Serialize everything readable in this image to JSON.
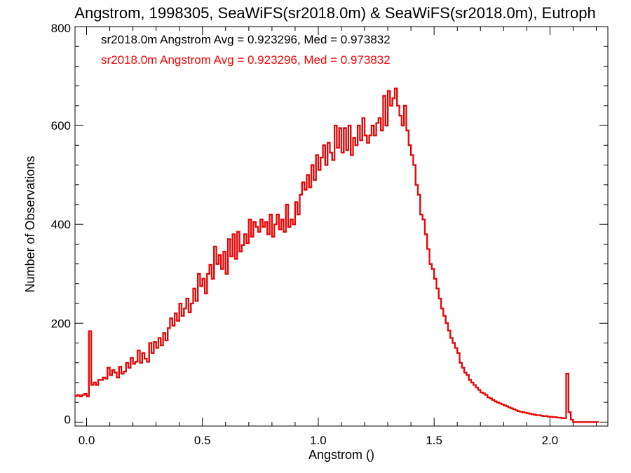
{
  "chart_data": {
    "type": "line",
    "title": "Angstrom, 1998305, SeaWiFS(sr2018.0m) & SeaWiFS(sr2018.0m), Eutroph",
    "xlabel": "Angstrom ()",
    "ylabel": "Number of Observations",
    "xlim": [
      -0.05,
      2.25
    ],
    "ylim": [
      -8,
      800
    ],
    "x_ticks": [
      0.0,
      0.5,
      1.0,
      1.5,
      2.0
    ],
    "x_tick_labels": [
      "0.0",
      "0.5",
      "1.0",
      "1.5",
      "2.0"
    ],
    "y_ticks": [
      0,
      200,
      400,
      600,
      800
    ],
    "y_tick_labels": [
      "0",
      "200",
      "400",
      "600",
      "800"
    ],
    "grid": false,
    "step_style": "histogram",
    "bin_width": 0.01,
    "series": [
      {
        "name": "sr2018.0m Angstrom",
        "color": "#000000",
        "x_start": -0.05,
        "x_end": 2.25,
        "values": [
          53,
          55,
          52,
          55,
          57,
          52,
          184,
          75,
          80,
          75,
          85,
          85,
          90,
          88,
          110,
          95,
          105,
          100,
          90,
          112,
          98,
          102,
          120,
          110,
          130,
          118,
          122,
          145,
          120,
          140,
          128,
          122,
          160,
          140,
          162,
          150,
          170,
          155,
          180,
          165,
          190,
          210,
          195,
          220,
          205,
          240,
          215,
          230,
          250,
          222,
          240,
          270,
          245,
          300,
          275,
          290,
          260,
          300,
          318,
          290,
          355,
          320,
          338,
          310,
          345,
          300,
          370,
          335,
          380,
          330,
          385,
          345,
          358,
          380,
          362,
          410,
          375,
          405,
          395,
          385,
          410,
          395,
          405,
          380,
          420,
          375,
          400,
          420,
          390,
          410,
          385,
          440,
          395,
          410,
          400,
          445,
          420,
          460,
          485,
          470,
          500,
          475,
          520,
          490,
          540,
          510,
          535,
          560,
          520,
          565,
          545,
          530,
          600,
          555,
          595,
          545,
          595,
          550,
          600,
          540,
          575,
          560,
          600,
          570,
          615,
          580,
          565,
          580,
          600,
          580,
          605,
          615,
          590,
          660,
          600,
          670,
          640,
          655,
          675,
          640,
          620,
          600,
          640,
          590,
          560,
          540,
          520,
          480,
          460,
          420,
          410,
          380,
          350,
          320,
          310,
          290,
          270,
          250,
          230,
          215,
          200,
          185,
          170,
          160,
          150,
          140,
          120,
          110,
          100,
          95,
          85,
          80,
          75,
          70,
          65,
          60,
          58,
          55,
          50,
          48,
          45,
          42,
          40,
          38,
          36,
          34,
          32,
          30,
          28,
          26,
          24,
          22,
          21,
          20,
          19,
          18,
          17,
          16,
          15,
          14,
          14,
          13,
          12,
          12,
          11,
          11,
          10,
          10,
          9,
          9,
          8,
          8,
          98,
          20,
          5,
          0,
          0,
          0,
          0,
          0,
          0,
          0,
          0,
          0,
          0,
          0
        ]
      },
      {
        "name": "sr2018.0m Angstrom",
        "color": "#ff0000",
        "x_start": -0.05,
        "x_end": 2.25,
        "values": [
          53,
          55,
          52,
          55,
          57,
          52,
          184,
          75,
          80,
          75,
          85,
          85,
          90,
          88,
          110,
          95,
          105,
          100,
          90,
          112,
          98,
          102,
          120,
          110,
          130,
          118,
          122,
          145,
          120,
          140,
          128,
          122,
          160,
          140,
          162,
          150,
          170,
          155,
          180,
          165,
          190,
          210,
          195,
          220,
          205,
          240,
          215,
          230,
          250,
          222,
          240,
          270,
          245,
          300,
          275,
          290,
          260,
          300,
          318,
          290,
          355,
          320,
          338,
          310,
          345,
          300,
          370,
          335,
          380,
          330,
          385,
          345,
          358,
          380,
          362,
          410,
          375,
          405,
          395,
          385,
          410,
          395,
          405,
          380,
          420,
          375,
          400,
          420,
          390,
          410,
          385,
          440,
          395,
          410,
          400,
          445,
          420,
          460,
          485,
          470,
          500,
          475,
          520,
          490,
          540,
          510,
          535,
          560,
          520,
          565,
          545,
          530,
          600,
          555,
          595,
          545,
          595,
          550,
          600,
          540,
          575,
          560,
          600,
          570,
          615,
          580,
          565,
          580,
          600,
          580,
          605,
          615,
          590,
          660,
          600,
          670,
          640,
          655,
          675,
          640,
          620,
          600,
          640,
          590,
          560,
          540,
          520,
          480,
          460,
          420,
          410,
          380,
          350,
          320,
          310,
          290,
          270,
          250,
          230,
          215,
          200,
          185,
          170,
          160,
          150,
          140,
          120,
          110,
          100,
          95,
          85,
          80,
          75,
          70,
          65,
          60,
          58,
          55,
          50,
          48,
          45,
          42,
          40,
          38,
          36,
          34,
          32,
          30,
          28,
          26,
          24,
          22,
          21,
          20,
          19,
          18,
          17,
          16,
          15,
          14,
          14,
          13,
          12,
          12,
          11,
          11,
          10,
          10,
          9,
          9,
          8,
          8,
          98,
          20,
          5,
          0,
          0,
          0,
          0,
          0,
          0,
          0,
          0,
          0,
          0,
          0
        ]
      }
    ],
    "annotations": [
      {
        "text": "sr2018.0m Angstrom Avg = 0.923296, Med = 0.973832",
        "color": "#000000"
      },
      {
        "text": "sr2018.0m Angstrom Avg = 0.923296, Med = 0.973832",
        "color": "#ff0000"
      }
    ]
  }
}
